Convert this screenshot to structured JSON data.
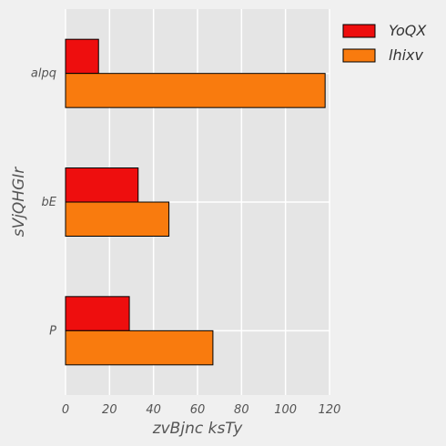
{
  "chart_data": {
    "type": "bar",
    "orientation": "horizontal",
    "categories": [
      "alpq",
      "bE",
      "P"
    ],
    "series": [
      {
        "name": "YoQX",
        "values": [
          15,
          33,
          29
        ],
        "color": "#ee0e0e"
      },
      {
        "name": "lhixv",
        "values": [
          118,
          47,
          67
        ],
        "color": "#f97b0e"
      }
    ],
    "xlabel": "zvBjnc  ksTy",
    "ylabel": "sVjQHGIr",
    "xlim": [
      0,
      120
    ],
    "xticks": [
      0,
      20,
      40,
      60,
      80,
      100,
      120
    ],
    "grid": true,
    "legend_position": "top-right",
    "plot_background": "#e5e5e5",
    "grid_color": "#ffffff"
  }
}
